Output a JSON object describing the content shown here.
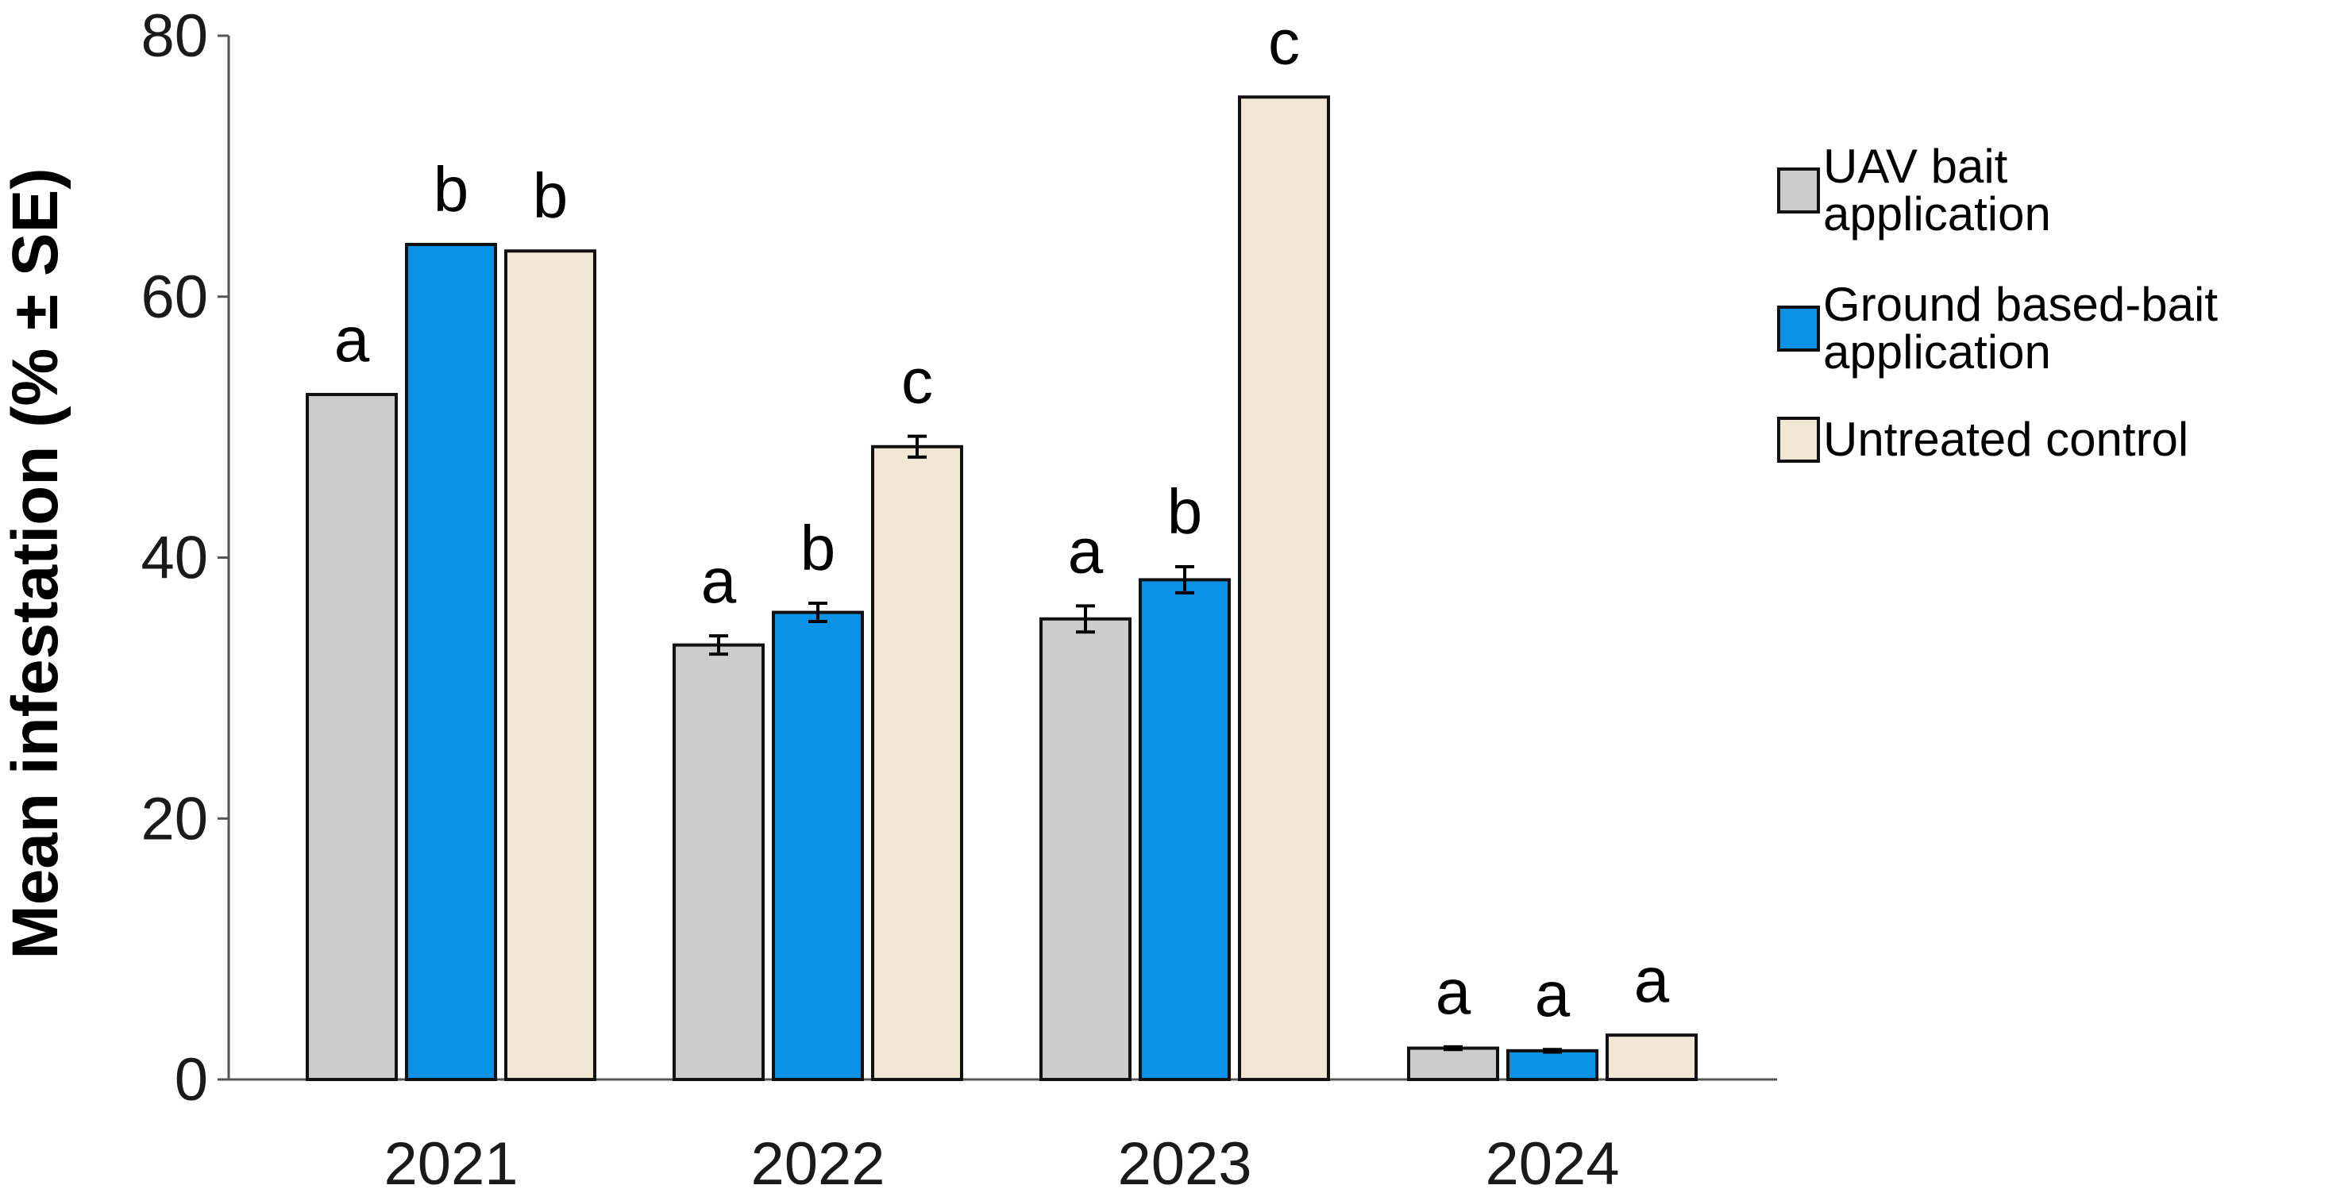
{
  "chart_data": {
    "type": "bar",
    "ylabel": "Mean infestation (% ± SE)",
    "xlabel": "",
    "ylim": [
      0,
      80
    ],
    "yticks": [
      0,
      20,
      40,
      60,
      80
    ],
    "categories": [
      "2021",
      "2022",
      "2023",
      "2024"
    ],
    "series": [
      {
        "name": "UAV bait application",
        "legend_lines": [
          "UAV bait",
          "application"
        ],
        "color": "#cccccc",
        "values": [
          52.5,
          33.3,
          35.3,
          2.4
        ],
        "se": [
          0,
          0.7,
          1.0,
          0.1
        ],
        "letters": [
          "a",
          "a",
          "a",
          "a"
        ]
      },
      {
        "name": "Ground based-bait application",
        "legend_lines": [
          "Ground based-bait",
          "application"
        ],
        "color": "#0a93e6",
        "values": [
          64.0,
          35.8,
          38.3,
          2.2
        ],
        "se": [
          0,
          0.7,
          1.0,
          0.1
        ],
        "letters": [
          "b",
          "b",
          "b",
          "a"
        ]
      },
      {
        "name": "Untreated control",
        "legend_lines": [
          "Untreated control"
        ],
        "color": "#efe7d3",
        "values": [
          63.5,
          48.5,
          75.3,
          3.4
        ],
        "se": [
          0,
          0.8,
          0,
          0
        ],
        "letters": [
          "b",
          "c",
          "c",
          "a"
        ]
      }
    ],
    "grid": false,
    "legend_position": "right"
  }
}
